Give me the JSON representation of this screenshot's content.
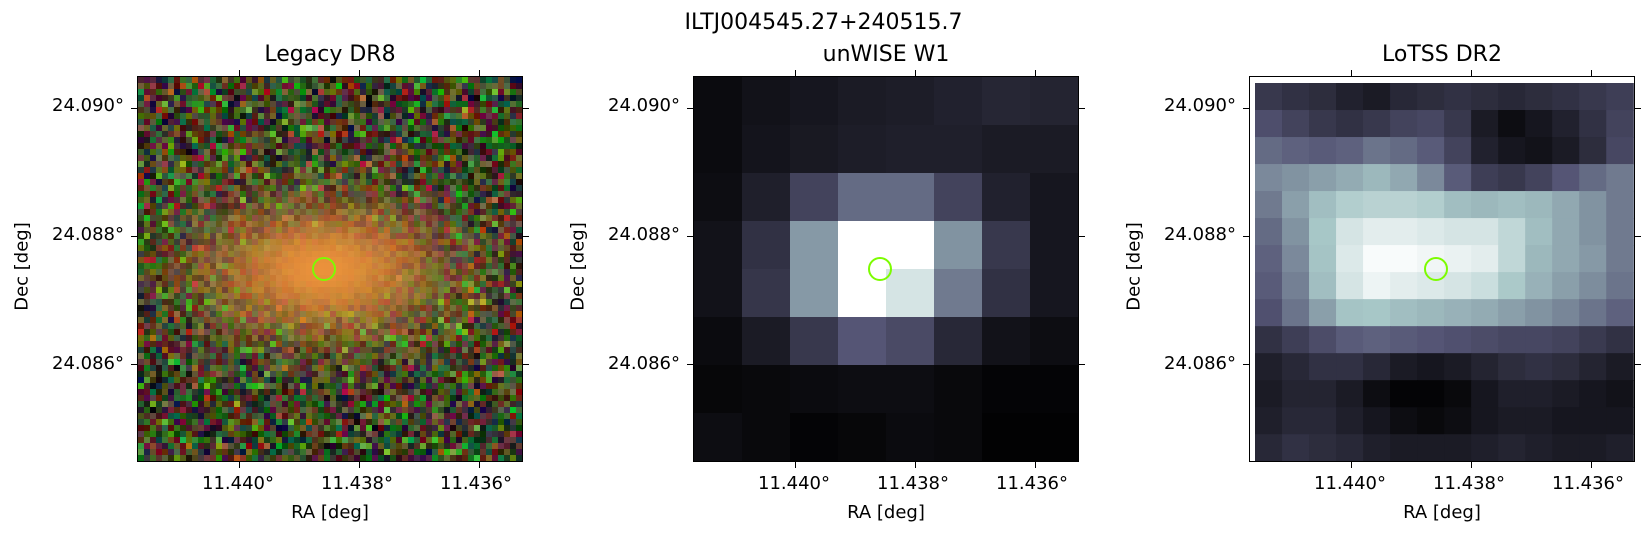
{
  "figure": {
    "title": "ILTJ004545.27+240515.7"
  },
  "marker_color": "#7cfc00",
  "chart_data": [
    {
      "type": "heatmap",
      "title": "Legacy DR8",
      "xlabel": "RA [deg]",
      "ylabel": "Dec [deg]",
      "x_ticks": [
        "11.440°",
        "11.438°",
        "11.436°"
      ],
      "y_ticks": [
        "24.090°",
        "24.088°",
        "24.086°"
      ],
      "x_tick_values": [
        11.44,
        11.438,
        11.436
      ],
      "y_tick_values": [
        24.09,
        24.088,
        24.086
      ],
      "xlim": [
        11.4417,
        11.4353
      ],
      "ylim": [
        24.0845,
        24.0905
      ],
      "colormap": "rgb composite (g, r, z)",
      "source_position": {
        "ra": 11.4386,
        "dec": 24.0875
      }
    },
    {
      "type": "heatmap",
      "title": "unWISE W1",
      "xlabel": "RA [deg]",
      "ylabel": "Dec [deg]",
      "x_ticks": [
        "11.440°",
        "11.438°",
        "11.436°"
      ],
      "y_ticks": [
        "24.090°",
        "24.088°",
        "24.086°"
      ],
      "x_tick_values": [
        11.44,
        11.438,
        11.436
      ],
      "y_tick_values": [
        24.09,
        24.088,
        24.086
      ],
      "xlim": [
        11.4417,
        11.4353
      ],
      "ylim": [
        24.0845,
        24.0905
      ],
      "colormap": "bone",
      "source_position": {
        "ra": 11.4386,
        "dec": 24.0875
      },
      "grid_rows": 8,
      "grid_cols": 8,
      "values": [
        [
          0.05,
          0.08,
          0.1,
          0.12,
          0.13,
          0.15,
          0.17,
          0.16
        ],
        [
          0.05,
          0.09,
          0.11,
          0.13,
          0.14,
          0.14,
          0.12,
          0.12
        ],
        [
          0.06,
          0.14,
          0.3,
          0.45,
          0.45,
          0.3,
          0.15,
          0.1
        ],
        [
          0.08,
          0.22,
          0.6,
          1.0,
          1.0,
          0.58,
          0.25,
          0.1
        ],
        [
          0.08,
          0.24,
          0.6,
          1.0,
          0.88,
          0.5,
          0.22,
          0.1
        ],
        [
          0.05,
          0.12,
          0.25,
          0.38,
          0.33,
          0.18,
          0.08,
          0.06
        ],
        [
          0.03,
          0.04,
          0.05,
          0.06,
          0.06,
          0.04,
          0.02,
          0.02
        ],
        [
          0.06,
          0.04,
          0.02,
          0.03,
          0.05,
          0.04,
          0.01,
          0.01
        ]
      ]
    },
    {
      "type": "heatmap",
      "title": "LoTSS DR2",
      "xlabel": "RA [deg]",
      "ylabel": "Dec [deg]",
      "x_ticks": [
        "11.440°",
        "11.438°",
        "11.436°"
      ],
      "y_ticks": [
        "24.090°",
        "24.088°",
        "24.086°"
      ],
      "x_tick_values": [
        11.44,
        11.438,
        11.436
      ],
      "y_tick_values": [
        24.09,
        24.088,
        24.086
      ],
      "xlim": [
        11.4417,
        11.4353
      ],
      "ylim": [
        24.0845,
        24.0905
      ],
      "colormap": "bone",
      "source_position": {
        "ra": 11.4386,
        "dec": 24.0875
      },
      "grid_rows": 14,
      "grid_cols": 14,
      "values": [
        [
          0.25,
          0.22,
          0.2,
          0.15,
          0.12,
          0.18,
          0.2,
          0.22,
          0.2,
          0.18,
          0.2,
          0.22,
          0.25,
          0.28
        ],
        [
          0.35,
          0.3,
          0.25,
          0.22,
          0.25,
          0.3,
          0.32,
          0.25,
          0.12,
          0.06,
          0.1,
          0.15,
          0.22,
          0.3
        ],
        [
          0.45,
          0.42,
          0.4,
          0.42,
          0.48,
          0.45,
          0.4,
          0.3,
          0.15,
          0.1,
          0.08,
          0.12,
          0.2,
          0.32
        ],
        [
          0.55,
          0.58,
          0.62,
          0.66,
          0.7,
          0.65,
          0.55,
          0.4,
          0.28,
          0.25,
          0.3,
          0.38,
          0.45,
          0.5
        ],
        [
          0.5,
          0.62,
          0.72,
          0.78,
          0.8,
          0.8,
          0.78,
          0.72,
          0.7,
          0.72,
          0.7,
          0.65,
          0.58,
          0.5
        ],
        [
          0.45,
          0.58,
          0.75,
          0.88,
          0.92,
          0.92,
          0.9,
          0.88,
          0.88,
          0.82,
          0.72,
          0.65,
          0.58,
          0.5
        ],
        [
          0.42,
          0.55,
          0.74,
          0.9,
          0.98,
          0.98,
          0.96,
          0.94,
          0.92,
          0.82,
          0.7,
          0.65,
          0.6,
          0.5
        ],
        [
          0.4,
          0.52,
          0.72,
          0.88,
          0.95,
          0.92,
          0.9,
          0.88,
          0.85,
          0.76,
          0.68,
          0.62,
          0.56,
          0.48
        ],
        [
          0.36,
          0.48,
          0.62,
          0.74,
          0.75,
          0.72,
          0.7,
          0.68,
          0.66,
          0.62,
          0.58,
          0.54,
          0.48,
          0.42
        ],
        [
          0.22,
          0.28,
          0.34,
          0.4,
          0.42,
          0.4,
          0.38,
          0.36,
          0.34,
          0.32,
          0.32,
          0.3,
          0.26,
          0.22
        ],
        [
          0.14,
          0.18,
          0.22,
          0.22,
          0.18,
          0.12,
          0.1,
          0.12,
          0.16,
          0.2,
          0.22,
          0.2,
          0.16,
          0.12
        ],
        [
          0.12,
          0.16,
          0.16,
          0.12,
          0.06,
          0.02,
          0.02,
          0.04,
          0.1,
          0.14,
          0.14,
          0.12,
          0.1,
          0.08
        ],
        [
          0.14,
          0.18,
          0.18,
          0.14,
          0.1,
          0.06,
          0.04,
          0.06,
          0.1,
          0.12,
          0.12,
          0.1,
          0.1,
          0.1
        ],
        [
          0.18,
          0.22,
          0.2,
          0.18,
          0.14,
          0.12,
          0.12,
          0.12,
          0.14,
          0.16,
          0.14,
          0.12,
          0.12,
          0.14
        ]
      ]
    }
  ]
}
